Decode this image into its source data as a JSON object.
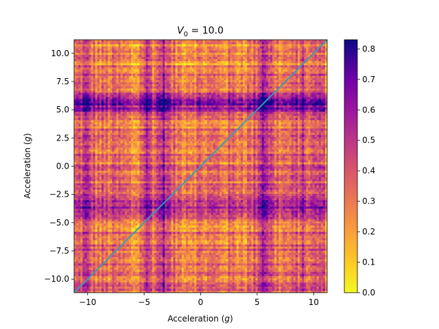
{
  "chart_data": {
    "type": "heatmap",
    "title_main": "V",
    "title_sub": "0",
    "title_rest": " = 10.0",
    "xlabel_main": "Acceleration (",
    "xlabel_var": "g",
    "xlabel_end": ")",
    "ylabel_main": "Acceleration (",
    "ylabel_var": "g",
    "ylabel_end": ")",
    "xlim": [
      -11.2,
      11.2
    ],
    "ylim": [
      -11.2,
      11.2
    ],
    "x_ticks": [
      -10,
      -5,
      0,
      5,
      10
    ],
    "x_tick_labels": [
      "−10",
      "−5",
      "0",
      "5",
      "10"
    ],
    "y_ticks": [
      -10.0,
      -7.5,
      -5.0,
      -2.5,
      0.0,
      2.5,
      5.0,
      7.5,
      10.0
    ],
    "y_tick_labels": [
      "−10.0",
      "−7.5",
      "−5.0",
      "−2.5",
      "0.0",
      "2.5",
      "5.0",
      "7.5",
      "10.0"
    ],
    "colorbar": {
      "min": 0.0,
      "max": 0.83,
      "ticks": [
        0.0,
        0.1,
        0.2,
        0.3,
        0.4,
        0.5,
        0.6,
        0.7,
        0.8
      ],
      "tick_labels": [
        "0.0",
        "0.1",
        "0.2",
        "0.3",
        "0.4",
        "0.5",
        "0.6",
        "0.7",
        "0.8"
      ],
      "colormap": "plasma_r"
    },
    "diagonal_line": {
      "x": [
        -11.2,
        11.2
      ],
      "y": [
        -11.2,
        11.2
      ],
      "color": "#3a9bb5"
    },
    "grid_resolution": 120,
    "base_value": 0.25,
    "high_bands": [
      {
        "axis": "y",
        "center": 5.6,
        "width": 0.9,
        "strength": 0.3
      },
      {
        "axis": "x",
        "center": 5.6,
        "width": 0.6,
        "strength": 0.3
      },
      {
        "axis": "x",
        "center": -3.3,
        "width": 0.5,
        "strength": 0.25
      },
      {
        "axis": "x",
        "center": -4.8,
        "width": 0.5,
        "strength": 0.2
      },
      {
        "axis": "y",
        "center": -3.8,
        "width": 0.6,
        "strength": 0.2
      },
      {
        "axis": "y",
        "center": -3.0,
        "width": 0.3,
        "strength": 0.15
      },
      {
        "axis": "x",
        "center": -10.2,
        "width": 0.6,
        "strength": 0.15
      },
      {
        "axis": "x",
        "center": 9.0,
        "width": 0.6,
        "strength": 0.12
      },
      {
        "axis": "x",
        "center": 10.5,
        "width": 0.4,
        "strength": 0.12
      }
    ],
    "low_bands": [
      {
        "axis": "y",
        "center": 9.8,
        "width": 1.2,
        "strength": 0.1
      },
      {
        "axis": "x",
        "center": -5.8,
        "width": 0.8,
        "strength": 0.08
      }
    ]
  }
}
